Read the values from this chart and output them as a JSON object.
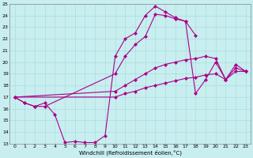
{
  "xlabel": "Windchill (Refroidissement éolien,°C)",
  "bg_color": "#c8eef0",
  "line_color": "#aa0088",
  "marker": "D",
  "markersize": 2,
  "linewidth": 0.8,
  "xlim": [
    -0.5,
    23.5
  ],
  "ylim": [
    13,
    25
  ],
  "xticks": [
    0,
    1,
    2,
    3,
    4,
    5,
    6,
    7,
    8,
    9,
    10,
    11,
    12,
    13,
    14,
    15,
    16,
    17,
    18,
    19,
    20,
    21,
    22,
    23
  ],
  "yticks": [
    13,
    14,
    15,
    16,
    17,
    18,
    19,
    20,
    21,
    22,
    23,
    24,
    25
  ],
  "grid_color": "#aadddd",
  "series": [
    {
      "x": [
        0,
        1,
        2,
        3,
        4,
        5,
        6,
        7,
        8,
        9,
        10,
        11,
        12,
        13,
        14,
        15,
        16,
        17,
        18
      ],
      "y": [
        17,
        16.5,
        16.2,
        16.5,
        15.5,
        13.1,
        13.2,
        13.1,
        13.1,
        13.7,
        20.5,
        22.0,
        22.5,
        24.0,
        24.8,
        24.3,
        23.8,
        23.5,
        22.3
      ]
    },
    {
      "x": [
        0,
        1,
        2,
        3,
        10,
        11,
        12,
        13,
        14,
        15,
        16,
        17,
        18,
        19,
        20,
        21,
        22,
        23
      ],
      "y": [
        17,
        16.5,
        16.2,
        16.2,
        19.0,
        20.5,
        21.5,
        22.2,
        24.1,
        24.0,
        23.7,
        23.5,
        17.3,
        18.5,
        20.0,
        18.5,
        19.8,
        19.2
      ]
    },
    {
      "x": [
        0,
        10,
        11,
        12,
        13,
        14,
        15,
        16,
        17,
        18,
        19,
        20,
        21,
        22,
        23
      ],
      "y": [
        17,
        17.5,
        18.0,
        18.5,
        19.0,
        19.5,
        19.8,
        20.0,
        20.2,
        20.3,
        20.5,
        20.3,
        18.5,
        19.5,
        19.2
      ]
    },
    {
      "x": [
        0,
        10,
        11,
        12,
        13,
        14,
        15,
        16,
        17,
        18,
        19,
        20,
        21,
        22,
        23
      ],
      "y": [
        17,
        17.0,
        17.3,
        17.5,
        17.8,
        18.0,
        18.2,
        18.4,
        18.6,
        18.7,
        18.9,
        19.0,
        18.5,
        19.2,
        19.2
      ]
    }
  ]
}
